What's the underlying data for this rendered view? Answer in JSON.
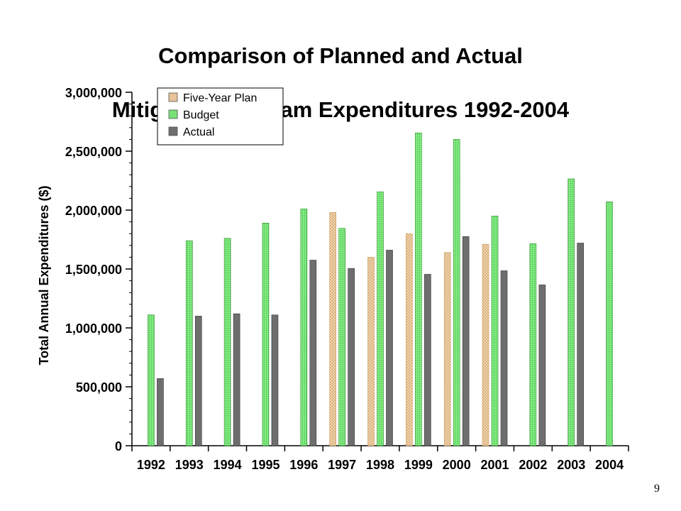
{
  "slide": {
    "title_line1": "Comparison of Planned and Actual",
    "title_line2": "Mitigation Program Expenditures 1992-2004",
    "page_number": "9"
  },
  "colors": {
    "five_year_plan": "#f5dcb8",
    "five_year_plan_hatch": "#d2a56e",
    "budget": "#86f086",
    "budget_hatch": "#2e9e2e",
    "actual": "#6e6e6e"
  },
  "chart_data": {
    "type": "bar",
    "title": "Comparison of Planned and Actual Mitigation Program Expenditures 1992-2004",
    "xlabel": "",
    "ylabel": "Total Annual Expenditures ($)",
    "ylim": [
      0,
      3000000
    ],
    "yticks": [
      0,
      500000,
      1000000,
      1500000,
      2000000,
      2500000,
      3000000
    ],
    "ytick_labels": [
      "0",
      "500,000",
      "1,000,000",
      "1,500,000",
      "2,000,000",
      "2,500,000",
      "3,000,000"
    ],
    "categories": [
      "1992",
      "1993",
      "1994",
      "1995",
      "1996",
      "1997",
      "1998",
      "1999",
      "2000",
      "2001",
      "2002",
      "2003",
      "2004"
    ],
    "legend_position": "top-left",
    "grid": false,
    "series": [
      {
        "name": "Five-Year Plan",
        "key": "five_year_plan",
        "values": [
          null,
          null,
          null,
          null,
          null,
          1980000,
          1600000,
          1800000,
          1640000,
          1710000,
          null,
          null,
          null
        ]
      },
      {
        "name": "Budget",
        "key": "budget",
        "values": [
          1110000,
          1740000,
          1760000,
          1890000,
          2010000,
          1845000,
          2155000,
          2655000,
          2600000,
          1950000,
          1715000,
          2265000,
          2070000
        ]
      },
      {
        "name": "Actual",
        "key": "actual",
        "values": [
          570000,
          1100000,
          1120000,
          1110000,
          1575000,
          1505000,
          1660000,
          1455000,
          1775000,
          1485000,
          1365000,
          1720000,
          null
        ]
      }
    ]
  }
}
